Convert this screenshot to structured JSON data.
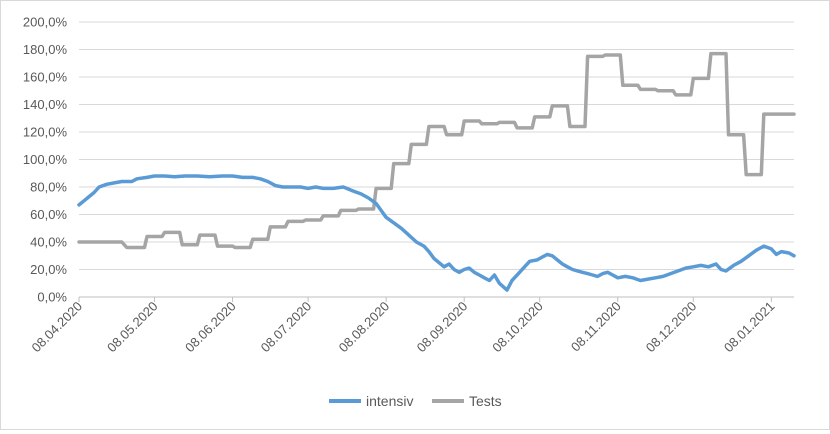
{
  "chart_data": {
    "type": "line",
    "title": "",
    "xlabel": "",
    "ylabel": "",
    "x_range": [
      "2020-04-08",
      "2021-01-17"
    ],
    "x_ticks": [
      "08.04.2020",
      "08.05.2020",
      "08.06.2020",
      "08.07.2020",
      "08.08.2020",
      "08.09.2020",
      "08.10.2020",
      "08.11.2020",
      "08.12.2020",
      "08.01.2021"
    ],
    "y_ticks": [
      "0,0%",
      "20,0%",
      "40,0%",
      "60,0%",
      "80,0%",
      "100,0%",
      "120,0%",
      "140,0%",
      "160,0%",
      "180,0%",
      "200,0%"
    ],
    "ylim": [
      0,
      200
    ],
    "grid": "horizontal",
    "legend_position": "bottom",
    "series": [
      {
        "name": "intensiv",
        "color": "#5b9bd5",
        "points": [
          [
            "2020-04-08",
            67
          ],
          [
            "2020-04-10",
            70
          ],
          [
            "2020-04-12",
            73
          ],
          [
            "2020-04-14",
            76
          ],
          [
            "2020-04-16",
            80
          ],
          [
            "2020-04-19",
            82
          ],
          [
            "2020-04-22",
            83
          ],
          [
            "2020-04-25",
            84
          ],
          [
            "2020-04-29",
            84
          ],
          [
            "2020-05-01",
            86
          ],
          [
            "2020-05-05",
            87
          ],
          [
            "2020-05-08",
            88
          ],
          [
            "2020-05-12",
            88
          ],
          [
            "2020-05-16",
            87.5
          ],
          [
            "2020-05-20",
            88
          ],
          [
            "2020-05-25",
            88
          ],
          [
            "2020-05-30",
            87.5
          ],
          [
            "2020-06-04",
            88
          ],
          [
            "2020-06-08",
            88
          ],
          [
            "2020-06-12",
            87
          ],
          [
            "2020-06-16",
            87
          ],
          [
            "2020-06-19",
            86
          ],
          [
            "2020-06-22",
            84
          ],
          [
            "2020-06-25",
            81
          ],
          [
            "2020-06-28",
            80
          ],
          [
            "2020-07-01",
            80
          ],
          [
            "2020-07-05",
            80
          ],
          [
            "2020-07-08",
            79
          ],
          [
            "2020-07-11",
            80
          ],
          [
            "2020-07-14",
            79
          ],
          [
            "2020-07-18",
            79
          ],
          [
            "2020-07-22",
            80
          ],
          [
            "2020-07-26",
            77
          ],
          [
            "2020-07-29",
            75
          ],
          [
            "2020-08-01",
            72
          ],
          [
            "2020-08-04",
            68
          ],
          [
            "2020-08-06",
            63
          ],
          [
            "2020-08-08",
            58
          ],
          [
            "2020-08-11",
            54
          ],
          [
            "2020-08-14",
            50
          ],
          [
            "2020-08-17",
            45
          ],
          [
            "2020-08-20",
            40
          ],
          [
            "2020-08-23",
            37
          ],
          [
            "2020-08-25",
            33
          ],
          [
            "2020-08-27",
            28
          ],
          [
            "2020-08-29",
            25
          ],
          [
            "2020-08-31",
            22
          ],
          [
            "2020-09-02",
            24
          ],
          [
            "2020-09-04",
            20
          ],
          [
            "2020-09-06",
            18
          ],
          [
            "2020-09-08",
            20
          ],
          [
            "2020-09-10",
            21
          ],
          [
            "2020-09-12",
            18
          ],
          [
            "2020-09-14",
            16
          ],
          [
            "2020-09-16",
            14
          ],
          [
            "2020-09-18",
            12
          ],
          [
            "2020-09-20",
            16
          ],
          [
            "2020-09-22",
            10
          ],
          [
            "2020-09-25",
            5
          ],
          [
            "2020-09-27",
            12
          ],
          [
            "2020-09-30",
            18
          ],
          [
            "2020-10-02",
            22
          ],
          [
            "2020-10-04",
            26
          ],
          [
            "2020-10-07",
            27
          ],
          [
            "2020-10-09",
            29
          ],
          [
            "2020-10-11",
            31
          ],
          [
            "2020-10-13",
            30
          ],
          [
            "2020-10-15",
            27
          ],
          [
            "2020-10-17",
            24
          ],
          [
            "2020-10-19",
            22
          ],
          [
            "2020-10-21",
            20
          ],
          [
            "2020-10-23",
            19
          ],
          [
            "2020-10-25",
            18
          ],
          [
            "2020-10-27",
            17
          ],
          [
            "2020-10-29",
            16
          ],
          [
            "2020-10-31",
            15
          ],
          [
            "2020-11-02",
            17
          ],
          [
            "2020-11-04",
            18
          ],
          [
            "2020-11-06",
            16
          ],
          [
            "2020-11-08",
            14
          ],
          [
            "2020-11-11",
            15
          ],
          [
            "2020-11-14",
            14
          ],
          [
            "2020-11-17",
            12
          ],
          [
            "2020-11-20",
            13
          ],
          [
            "2020-11-23",
            14
          ],
          [
            "2020-11-26",
            15
          ],
          [
            "2020-11-29",
            17
          ],
          [
            "2020-12-02",
            19
          ],
          [
            "2020-12-05",
            21
          ],
          [
            "2020-12-08",
            22
          ],
          [
            "2020-12-11",
            23
          ],
          [
            "2020-12-14",
            22
          ],
          [
            "2020-12-17",
            24
          ],
          [
            "2020-12-19",
            20
          ],
          [
            "2020-12-21",
            19
          ],
          [
            "2020-12-24",
            23
          ],
          [
            "2020-12-27",
            26
          ],
          [
            "2020-12-30",
            30
          ],
          [
            "2021-01-02",
            34
          ],
          [
            "2021-01-05",
            37
          ],
          [
            "2021-01-08",
            35
          ],
          [
            "2021-01-10",
            31
          ],
          [
            "2021-01-12",
            33
          ],
          [
            "2021-01-15",
            32
          ],
          [
            "2021-01-17",
            30
          ]
        ]
      },
      {
        "name": "Tests",
        "color": "#a5a5a5",
        "points": [
          [
            "2020-04-08",
            40
          ],
          [
            "2020-04-25",
            40
          ],
          [
            "2020-04-27",
            36
          ],
          [
            "2020-05-04",
            36
          ],
          [
            "2020-05-05",
            44
          ],
          [
            "2020-05-11",
            44
          ],
          [
            "2020-05-12",
            47
          ],
          [
            "2020-05-18",
            47
          ],
          [
            "2020-05-19",
            38
          ],
          [
            "2020-05-25",
            38
          ],
          [
            "2020-05-26",
            45
          ],
          [
            "2020-06-01",
            45
          ],
          [
            "2020-06-02",
            37
          ],
          [
            "2020-06-08",
            37
          ],
          [
            "2020-06-09",
            36
          ],
          [
            "2020-06-15",
            36
          ],
          [
            "2020-06-16",
            42
          ],
          [
            "2020-06-22",
            42
          ],
          [
            "2020-06-23",
            51
          ],
          [
            "2020-06-29",
            51
          ],
          [
            "2020-06-30",
            55
          ],
          [
            "2020-07-06",
            55
          ],
          [
            "2020-07-07",
            56
          ],
          [
            "2020-07-13",
            56
          ],
          [
            "2020-07-14",
            59
          ],
          [
            "2020-07-20",
            59
          ],
          [
            "2020-07-21",
            63
          ],
          [
            "2020-07-27",
            63
          ],
          [
            "2020-07-28",
            64
          ],
          [
            "2020-08-03",
            64
          ],
          [
            "2020-08-04",
            79
          ],
          [
            "2020-08-10",
            79
          ],
          [
            "2020-08-11",
            97
          ],
          [
            "2020-08-17",
            97
          ],
          [
            "2020-08-18",
            111
          ],
          [
            "2020-08-24",
            111
          ],
          [
            "2020-08-25",
            124
          ],
          [
            "2020-08-31",
            124
          ],
          [
            "2020-09-01",
            118
          ],
          [
            "2020-09-07",
            118
          ],
          [
            "2020-09-08",
            128
          ],
          [
            "2020-09-14",
            128
          ],
          [
            "2020-09-15",
            126
          ],
          [
            "2020-09-21",
            126
          ],
          [
            "2020-09-22",
            127
          ],
          [
            "2020-09-28",
            127
          ],
          [
            "2020-09-29",
            123
          ],
          [
            "2020-10-05",
            123
          ],
          [
            "2020-10-06",
            131
          ],
          [
            "2020-10-12",
            131
          ],
          [
            "2020-10-13",
            139
          ],
          [
            "2020-10-19",
            139
          ],
          [
            "2020-10-20",
            124
          ],
          [
            "2020-10-26",
            124
          ],
          [
            "2020-10-27",
            175
          ],
          [
            "2020-11-02",
            175
          ],
          [
            "2020-11-03",
            176
          ],
          [
            "2020-11-09",
            176
          ],
          [
            "2020-11-10",
            154
          ],
          [
            "2020-11-16",
            154
          ],
          [
            "2020-11-17",
            151
          ],
          [
            "2020-11-23",
            151
          ],
          [
            "2020-11-24",
            150
          ],
          [
            "2020-11-30",
            150
          ],
          [
            "2020-12-01",
            147
          ],
          [
            "2020-12-07",
            147
          ],
          [
            "2020-12-08",
            159
          ],
          [
            "2020-12-14",
            159
          ],
          [
            "2020-12-15",
            177
          ],
          [
            "2020-12-21",
            177
          ],
          [
            "2020-12-22",
            118
          ],
          [
            "2020-12-28",
            118
          ],
          [
            "2020-12-29",
            89
          ],
          [
            "2021-01-04",
            89
          ],
          [
            "2021-01-05",
            133
          ],
          [
            "2021-01-17",
            133
          ]
        ]
      }
    ]
  }
}
